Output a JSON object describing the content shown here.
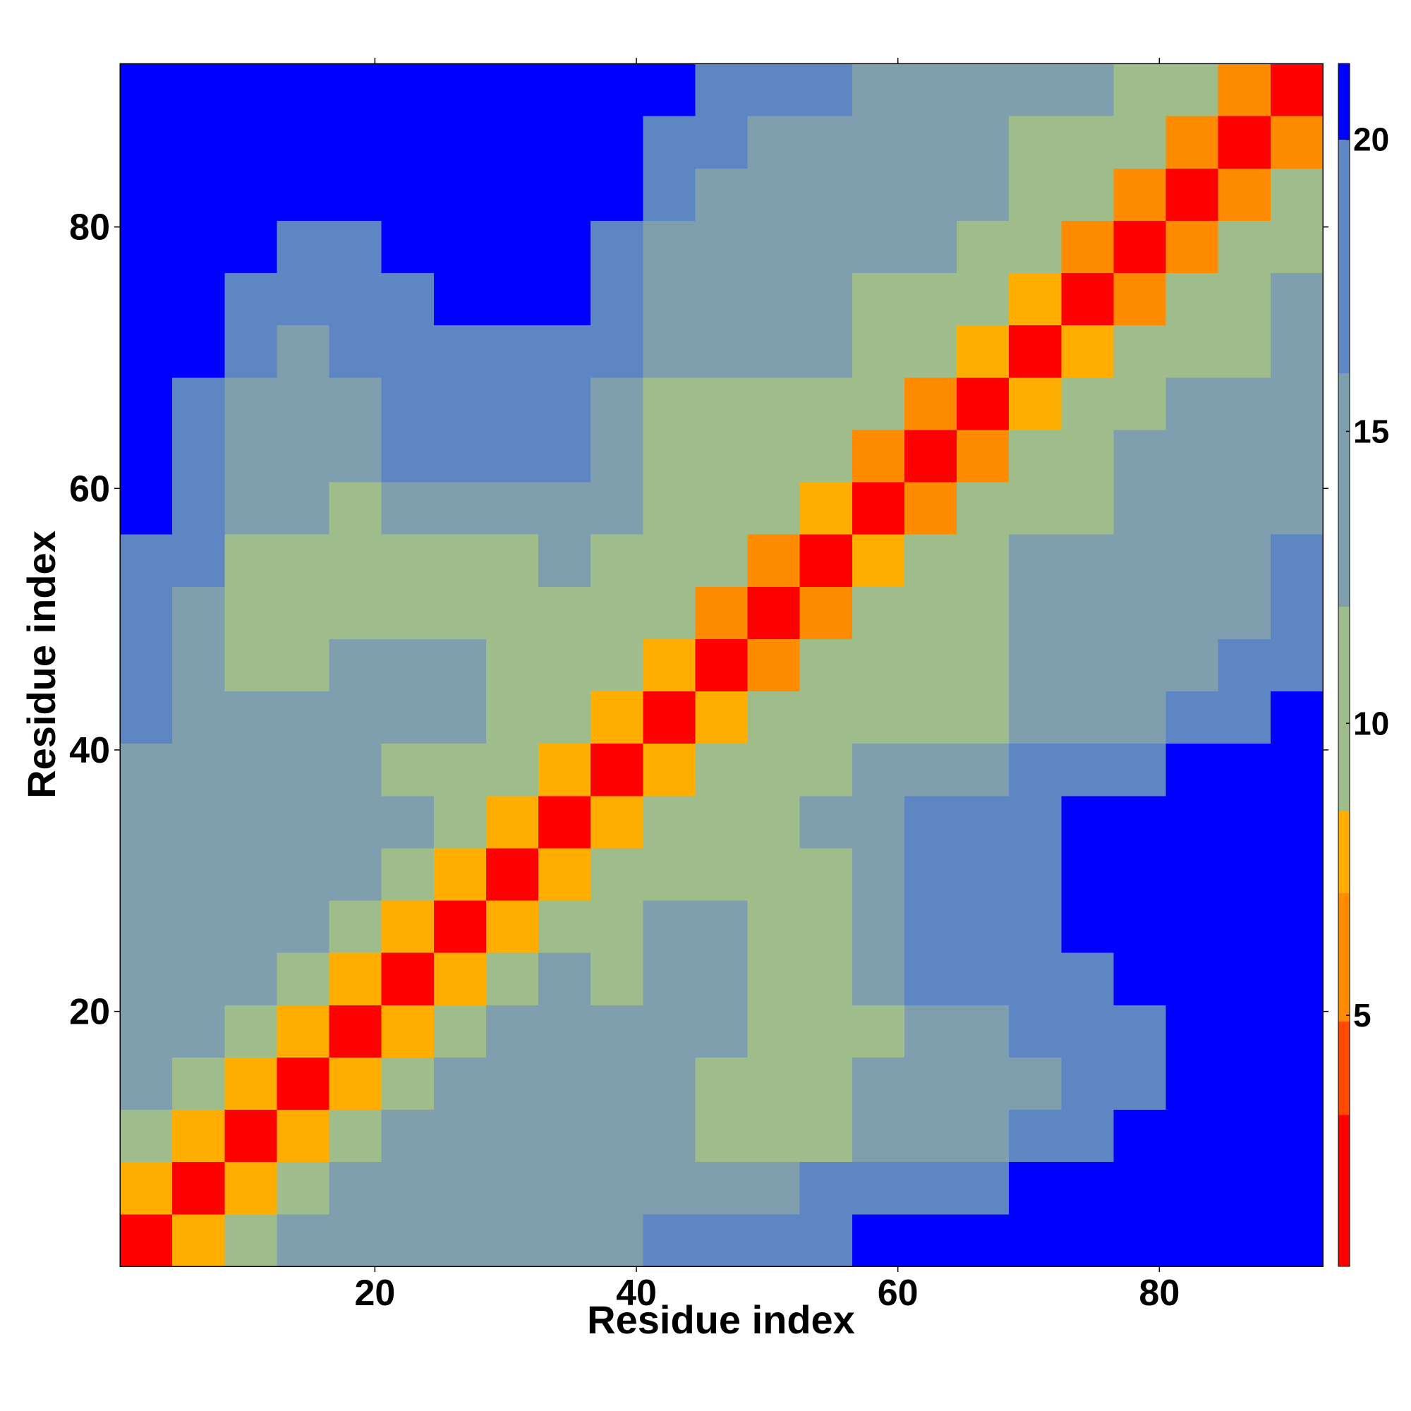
{
  "chart_data": {
    "type": "heatmap",
    "xlabel": "Residue index",
    "ylabel": "Residue index",
    "xbins": [
      0.5,
      4.5,
      8.5,
      12.5,
      16.5,
      20.5,
      24.5,
      28.5,
      32.5,
      36.5,
      40.5,
      44.5,
      48.5,
      52.5,
      56.5,
      60.5,
      64.5,
      68.5,
      72.5,
      76.5,
      80.5,
      84.5,
      88.5,
      92.5
    ],
    "ybins": [
      0.5,
      4.5,
      8.5,
      12.5,
      16.5,
      20.5,
      24.5,
      28.5,
      32.5,
      36.5,
      40.5,
      44.5,
      48.5,
      52.5,
      56.5,
      60.5,
      64.5,
      68.5,
      72.5,
      76.5,
      80.5,
      84.5,
      88.5,
      92.5
    ],
    "xlim": [
      0.5,
      92.5
    ],
    "ylim": [
      0.5,
      92.5
    ],
    "xticks": [
      20,
      40,
      60,
      80
    ],
    "yticks": [
      20,
      40,
      60,
      80
    ],
    "zlim": [
      0.7,
      21.3
    ],
    "zticks": [
      5,
      10,
      15,
      20
    ],
    "colorscale": [
      {
        "value": 3.3,
        "color": "#ff0000"
      },
      {
        "value": 4.9,
        "color": "#ff4a00"
      },
      {
        "value": 7.1,
        "color": "#ff8c00"
      },
      {
        "value": 8.5,
        "color": "#ffae00"
      },
      {
        "value": 12,
        "color": "#9fbd8b"
      },
      {
        "value": 16,
        "color": "#7f9fae"
      },
      {
        "value": 20,
        "color": "#5d86c2"
      },
      {
        "value": 21.3,
        "color": "#0000ff"
      }
    ],
    "z": [
      [
        3,
        8,
        11,
        13,
        14,
        14,
        15,
        15,
        15,
        16,
        17,
        17,
        18,
        20,
        21,
        21,
        22,
        22,
        22,
        22,
        22,
        22,
        22
      ],
      [
        8,
        3,
        8,
        11,
        13,
        14,
        14,
        14,
        15,
        15,
        16,
        15,
        16,
        17,
        18,
        19,
        20,
        22,
        22,
        22,
        22,
        22,
        22
      ],
      [
        11,
        8,
        3,
        8,
        11,
        13,
        13,
        14,
        14,
        14,
        14,
        12,
        10,
        10,
        14,
        15,
        16,
        17,
        19,
        21,
        22,
        22,
        22
      ],
      [
        13,
        11,
        8,
        3,
        8,
        11,
        13,
        14,
        14,
        13,
        13,
        12,
        9,
        11,
        13,
        14,
        15,
        16,
        18,
        20,
        21,
        22,
        22
      ],
      [
        14,
        13,
        11,
        8,
        3,
        8,
        11,
        13,
        14,
        13,
        13,
        13,
        11,
        9,
        12,
        15,
        16,
        17,
        18,
        20,
        21,
        22,
        22
      ],
      [
        14,
        14,
        13,
        11,
        8,
        3,
        8,
        11,
        13,
        12,
        13,
        14,
        12,
        11,
        14,
        17,
        18,
        19,
        20,
        21,
        21,
        22,
        22
      ],
      [
        15,
        14,
        13,
        13,
        11,
        8,
        3,
        8,
        11,
        12,
        13,
        13,
        12,
        11,
        15,
        17,
        18,
        20,
        21,
        21,
        22,
        22,
        22
      ],
      [
        15,
        14,
        14,
        14,
        13,
        11,
        8,
        3,
        8,
        11,
        12,
        12,
        10,
        10,
        14,
        17,
        18,
        20,
        21,
        21,
        22,
        22,
        22
      ],
      [
        15,
        15,
        14,
        14,
        14,
        13,
        11,
        8,
        3,
        8,
        10,
        9,
        9,
        13,
        16,
        17,
        19,
        20,
        21,
        21,
        22,
        22,
        22
      ],
      [
        16,
        15,
        14,
        13,
        13,
        12,
        12,
        11,
        8,
        3,
        8,
        11,
        9,
        11,
        14,
        15,
        16,
        17,
        19,
        20,
        21,
        22,
        22
      ],
      [
        17,
        16,
        14,
        13,
        13,
        13,
        13,
        12,
        10,
        8,
        3,
        8,
        9,
        11,
        12,
        11,
        12,
        14,
        15,
        16,
        18,
        20,
        21
      ],
      [
        17,
        15,
        12,
        12,
        13,
        14,
        13,
        12,
        9,
        11,
        8,
        3,
        7,
        9,
        11,
        9,
        10,
        13,
        14,
        15,
        16,
        17,
        19
      ],
      [
        18,
        16,
        10,
        9,
        11,
        12,
        12,
        10,
        9,
        9,
        9,
        7,
        3,
        7,
        10,
        12,
        12,
        13,
        14,
        15,
        15,
        16,
        17
      ],
      [
        20,
        17,
        10,
        11,
        9,
        11,
        11,
        10,
        13,
        11,
        11,
        9,
        7,
        3,
        8,
        10,
        12,
        13,
        13,
        14,
        15,
        16,
        17
      ],
      [
        21,
        18,
        14,
        13,
        12,
        14,
        15,
        14,
        16,
        14,
        12,
        11,
        10,
        8,
        3,
        7,
        9,
        11,
        12,
        13,
        14,
        15,
        16
      ],
      [
        21,
        19,
        15,
        14,
        15,
        17,
        17,
        17,
        17,
        15,
        11,
        9,
        12,
        10,
        7,
        3,
        7,
        10,
        12,
        13,
        14,
        15,
        15
      ],
      [
        22,
        20,
        16,
        15,
        16,
        18,
        18,
        18,
        19,
        16,
        12,
        10,
        12,
        12,
        9,
        7,
        3,
        8,
        10,
        12,
        13,
        14,
        14
      ],
      [
        22,
        22,
        17,
        16,
        17,
        19,
        20,
        20,
        20,
        17,
        14,
        13,
        13,
        13,
        11,
        10,
        8,
        3,
        8,
        10,
        11,
        12,
        14
      ],
      [
        22,
        22,
        19,
        18,
        18,
        20,
        21,
        21,
        21,
        19,
        15,
        14,
        14,
        13,
        12,
        12,
        10,
        8,
        3,
        7,
        9,
        10,
        13
      ],
      [
        22,
        22,
        21,
        20,
        20,
        21,
        21,
        21,
        21,
        20,
        16,
        15,
        15,
        14,
        13,
        13,
        12,
        10,
        7,
        3,
        7,
        9,
        11
      ],
      [
        22,
        22,
        22,
        21,
        21,
        21,
        22,
        22,
        22,
        21,
        18,
        16,
        15,
        15,
        14,
        14,
        13,
        11,
        9,
        7,
        3,
        7,
        10
      ],
      [
        22,
        22,
        22,
        22,
        22,
        22,
        22,
        22,
        22,
        22,
        20,
        17,
        16,
        16,
        15,
        15,
        14,
        12,
        10,
        9,
        7,
        3,
        7
      ],
      [
        22,
        22,
        22,
        22,
        22,
        22,
        22,
        22,
        22,
        22,
        21,
        19,
        17,
        17,
        16,
        15,
        14,
        14,
        13,
        11,
        10,
        7,
        3
      ]
    ]
  }
}
